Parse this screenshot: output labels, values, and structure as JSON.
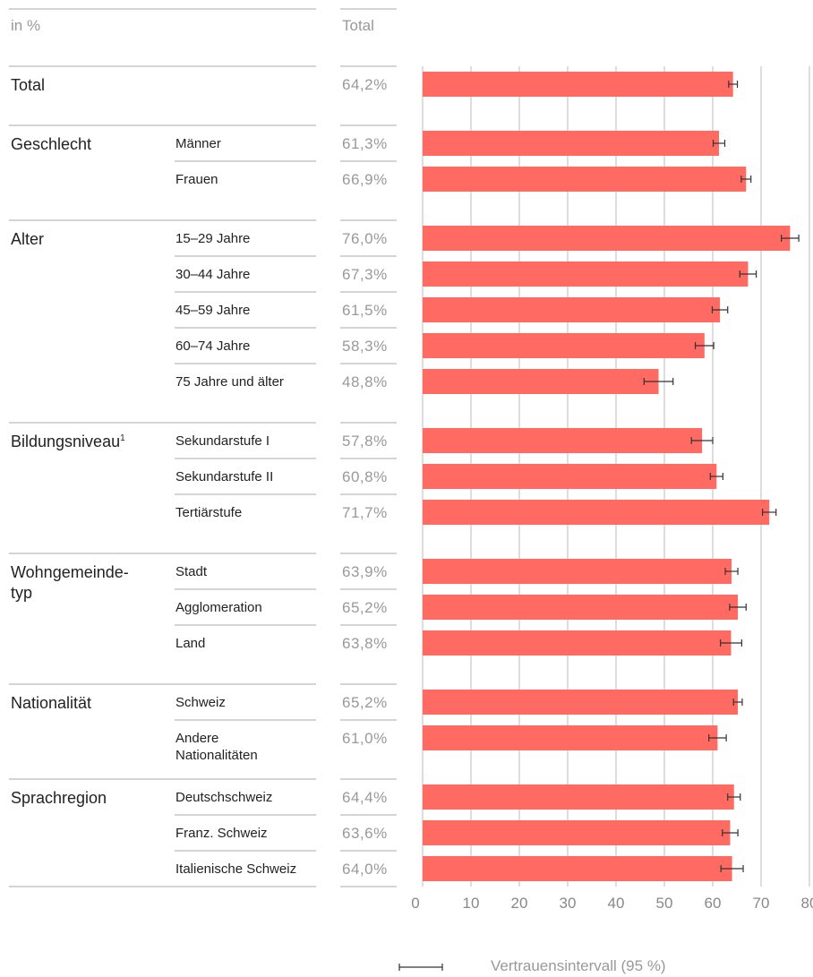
{
  "chart_data": {
    "type": "barh",
    "header_label": "in %",
    "header_total": "Total",
    "color": "#ff6b63",
    "xlim": [
      0,
      80
    ],
    "xticks": [
      0,
      10,
      20,
      30,
      40,
      50,
      60,
      70,
      80
    ],
    "grid": true,
    "legend": "Vertrauensintervall (95 %)",
    "groups": [
      {
        "name": "Total",
        "categories": [
          null
        ],
        "values": [
          64.2
        ],
        "value_labels": [
          "64,2%"
        ],
        "errors": [
          0.9
        ]
      },
      {
        "name": "Geschlecht",
        "categories": [
          "Männer",
          "Frauen"
        ],
        "values": [
          61.3,
          66.9
        ],
        "value_labels": [
          "61,3%",
          "66,9%"
        ],
        "errors": [
          1.2,
          1.0
        ]
      },
      {
        "name": "Alter",
        "categories": [
          "15–29 Jahre",
          "30–44 Jahre",
          "45–59 Jahre",
          "60–74 Jahre",
          "75 Jahre und älter"
        ],
        "values": [
          76.0,
          67.3,
          61.5,
          58.3,
          48.8
        ],
        "value_labels": [
          "76,0%",
          "67,3%",
          "61,5%",
          "58,3%",
          "48,8%"
        ],
        "errors": [
          1.8,
          1.7,
          1.6,
          1.9,
          3.0
        ]
      },
      {
        "name": "Bildungsniveau",
        "superscript": "1",
        "categories": [
          "Sekundarstufe I",
          "Sekundarstufe II",
          "Tertiärstufe"
        ],
        "values": [
          57.8,
          60.8,
          71.7
        ],
        "value_labels": [
          "57,8%",
          "60,8%",
          "71,7%"
        ],
        "errors": [
          2.2,
          1.3,
          1.4
        ]
      },
      {
        "name": "Wohngemeinde-\ntyp",
        "categories": [
          "Stadt",
          "Agglomeration",
          "Land"
        ],
        "values": [
          63.9,
          65.2,
          63.8
        ],
        "value_labels": [
          "63,9%",
          "65,2%",
          "63,8%"
        ],
        "errors": [
          1.3,
          1.7,
          2.2
        ]
      },
      {
        "name": "Nationalität",
        "categories": [
          "Schweiz",
          "Andere\nNationalitäten"
        ],
        "values": [
          65.2,
          61.0
        ],
        "value_labels": [
          "65,2%",
          "61,0%"
        ],
        "errors": [
          0.9,
          1.8
        ]
      },
      {
        "name": "Sprachregion",
        "categories": [
          "Deutschschweiz",
          "Franz. Schweiz",
          "Italienische Schweiz"
        ],
        "values": [
          64.4,
          63.6,
          64.0
        ],
        "value_labels": [
          "64,4%",
          "63,6%",
          "64,0%"
        ],
        "errors": [
          1.3,
          1.6,
          2.3
        ]
      }
    ]
  }
}
